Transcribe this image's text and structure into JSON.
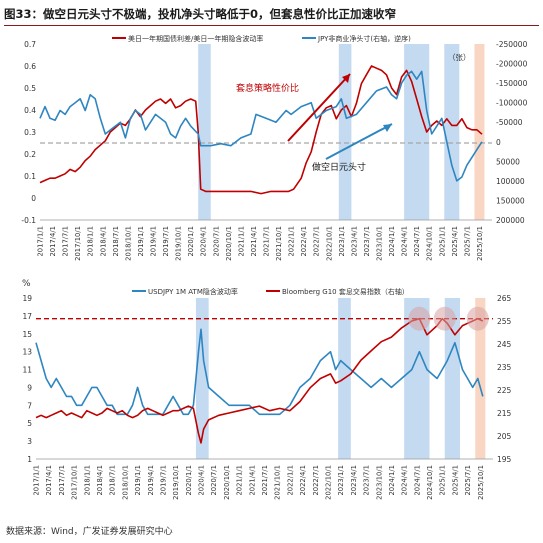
{
  "figure": {
    "title": "图33：做空日元头寸不极端，投机净头寸略低于0，但套息性价比正加速收窄",
    "source": "数据来源：Wind，广发证券发展研究中心"
  },
  "colors": {
    "red_series": "#c00000",
    "blue_series": "#2e86c1",
    "band_blue": "#b8d4ee",
    "band_orange": "#f8cfb8",
    "dashed": "#a6a6a6",
    "redDashed": "#c00000",
    "highlight": "#d9a3a3"
  },
  "chart_data": [
    {
      "type": "line",
      "legend": [
        "美日一年期国债利差/美日一年期隐含波动率",
        "JPY非商业净头寸(右轴，逆序)"
      ],
      "legend_position": "top",
      "annotations": {
        "zhang": "（张）",
        "carry": "套息策略性价比",
        "short": "做空日元头寸"
      },
      "y_left": {
        "min": -0.1,
        "max": 0.7,
        "ticks": [
          "0.7",
          "0.6",
          "0.5",
          "0.4",
          "0.3",
          "0.2",
          "0.1",
          "0",
          "-0.1"
        ]
      },
      "y_right": {
        "min": -250000,
        "max": 200000,
        "reversed": true,
        "ticks": [
          "-250000",
          "-200000",
          "-150000",
          "-100000",
          "-50000",
          "0",
          "50000",
          "100000",
          "150000",
          "200000"
        ]
      },
      "x_ticks": [
        "2017/1/1",
        "2017/4/1",
        "2017/7/1",
        "2017/10/1",
        "2018/1/1",
        "2018/4/1",
        "2018/7/1",
        "2018/10/1",
        "2019/1/1",
        "2019/4/1",
        "2019/7/1",
        "2019/10/1",
        "2020/1/1",
        "2020/4/1",
        "2020/7/1",
        "2020/10/1",
        "2021/1/1",
        "2021/4/1",
        "2021/7/1",
        "2021/10/1",
        "2022/1/1",
        "2022/4/1",
        "2022/7/1",
        "2022/10/1",
        "2023/1/1",
        "2023/4/1",
        "2023/7/1",
        "2023/10/1",
        "2024/1/1",
        "2024/4/1",
        "2024/7/1",
        "2024/10/1",
        "2025/1/1",
        "2025/4/1",
        "2025/7/1",
        "2025/10/1"
      ],
      "reference_line": 0.25,
      "shaded_periods": [
        {
          "from": 2020.15,
          "to": 2020.4,
          "color": "blue"
        },
        {
          "from": 2022.95,
          "to": 2023.2,
          "color": "blue"
        },
        {
          "from": 2024.25,
          "to": 2024.75,
          "color": "blue"
        },
        {
          "from": 2025.05,
          "to": 2025.35,
          "color": "blue"
        },
        {
          "from": 2025.65,
          "to": 2025.85,
          "color": "orange"
        }
      ],
      "series": [
        {
          "name": "美日一年期国债利差/美日一年期隐含波动率",
          "axis": "left",
          "x": [
            2017.0,
            2017.1,
            2017.2,
            2017.3,
            2017.4,
            2017.5,
            2017.6,
            2017.7,
            2017.8,
            2017.9,
            2018.0,
            2018.1,
            2018.2,
            2018.3,
            2018.4,
            2018.5,
            2018.6,
            2018.7,
            2018.8,
            2018.9,
            2019.0,
            2019.1,
            2019.2,
            2019.3,
            2019.4,
            2019.5,
            2019.6,
            2019.7,
            2019.8,
            2019.9,
            2020.0,
            2020.1,
            2020.15,
            2020.2,
            2020.3,
            2020.4,
            2020.6,
            2020.8,
            2021.0,
            2021.2,
            2021.4,
            2021.6,
            2021.8,
            2021.95,
            2022.05,
            2022.2,
            2022.3,
            2022.4,
            2022.5,
            2022.6,
            2022.7,
            2022.8,
            2022.9,
            2023.0,
            2023.1,
            2023.2,
            2023.3,
            2023.4,
            2023.5,
            2023.6,
            2023.7,
            2023.8,
            2023.9,
            2024.0,
            2024.1,
            2024.2,
            2024.3,
            2024.4,
            2024.5,
            2024.6,
            2024.7,
            2024.8,
            2024.9,
            2025.0,
            2025.1,
            2025.2,
            2025.3,
            2025.4,
            2025.5,
            2025.6,
            2025.7,
            2025.8
          ],
          "y": [
            0.07,
            0.08,
            0.09,
            0.09,
            0.1,
            0.11,
            0.13,
            0.12,
            0.14,
            0.17,
            0.19,
            0.22,
            0.24,
            0.26,
            0.3,
            0.32,
            0.34,
            0.33,
            0.36,
            0.4,
            0.37,
            0.4,
            0.42,
            0.44,
            0.45,
            0.43,
            0.45,
            0.41,
            0.42,
            0.44,
            0.45,
            0.44,
            0.3,
            0.04,
            0.03,
            0.03,
            0.03,
            0.03,
            0.03,
            0.03,
            0.02,
            0.03,
            0.03,
            0.03,
            0.04,
            0.09,
            0.16,
            0.21,
            0.3,
            0.38,
            0.41,
            0.42,
            0.36,
            0.4,
            0.42,
            0.37,
            0.43,
            0.52,
            0.56,
            0.6,
            0.59,
            0.58,
            0.56,
            0.5,
            0.47,
            0.55,
            0.58,
            0.53,
            0.45,
            0.37,
            0.3,
            0.33,
            0.35,
            0.33,
            0.36,
            0.33,
            0.33,
            0.36,
            0.32,
            0.31,
            0.31,
            0.29
          ]
        },
        {
          "name": "JPY非商业净头寸(右轴，逆序)",
          "axis": "right",
          "x": [
            2017.0,
            2017.1,
            2017.2,
            2017.3,
            2017.4,
            2017.5,
            2017.6,
            2017.7,
            2017.8,
            2017.9,
            2018.0,
            2018.1,
            2018.2,
            2018.3,
            2018.4,
            2018.5,
            2018.6,
            2018.7,
            2018.8,
            2018.9,
            2019.0,
            2019.1,
            2019.2,
            2019.3,
            2019.4,
            2019.5,
            2019.6,
            2019.7,
            2019.8,
            2019.9,
            2020.0,
            2020.15,
            2020.2,
            2020.3,
            2020.4,
            2020.6,
            2020.8,
            2021.0,
            2021.2,
            2021.3,
            2021.5,
            2021.7,
            2021.9,
            2022.0,
            2022.2,
            2022.4,
            2022.5,
            2022.7,
            2022.9,
            2023.0,
            2023.1,
            2023.3,
            2023.5,
            2023.7,
            2023.9,
            2024.0,
            2024.1,
            2024.2,
            2024.3,
            2024.4,
            2024.5,
            2024.6,
            2024.7,
            2024.8,
            2024.9,
            2025.0,
            2025.1,
            2025.2,
            2025.3,
            2025.4,
            2025.5,
            2025.6,
            2025.7,
            2025.8
          ],
          "y": [
            -60000,
            -90000,
            -60000,
            -55000,
            -80000,
            -70000,
            -90000,
            -100000,
            -110000,
            -80000,
            -120000,
            -110000,
            -60000,
            -20000,
            -30000,
            -40000,
            -50000,
            -10000,
            -60000,
            -80000,
            -70000,
            -30000,
            -50000,
            -70000,
            -60000,
            -50000,
            -20000,
            -10000,
            -40000,
            -60000,
            -40000,
            -20000,
            10000,
            10000,
            10000,
            5000,
            10000,
            -10000,
            -20000,
            -70000,
            -60000,
            -50000,
            -80000,
            -70000,
            -90000,
            -100000,
            -60000,
            -80000,
            -90000,
            -110000,
            -60000,
            -70000,
            -100000,
            -130000,
            -140000,
            -120000,
            -110000,
            -150000,
            -170000,
            -180000,
            -160000,
            -180000,
            -80000,
            -20000,
            -40000,
            -60000,
            0,
            60000,
            100000,
            90000,
            60000,
            40000,
            20000,
            0
          ]
        }
      ]
    },
    {
      "type": "line",
      "ylabel": "%",
      "legend": [
        "USDJPY 1M ATM隐含波动率",
        "Bloomberg G10 套息交易指数（右轴）"
      ],
      "legend_position": "top",
      "y_left": {
        "min": 1,
        "max": 19,
        "ticks": [
          "19",
          "17",
          "15",
          "13",
          "11",
          "9",
          "7",
          "5",
          "3",
          "1"
        ]
      },
      "y_right": {
        "min": 195,
        "max": 265,
        "ticks": [
          "265",
          "255",
          "245",
          "235",
          "225",
          "215",
          "205",
          "195"
        ]
      },
      "x_ticks": [
        "2017/1/1",
        "2017/4/1",
        "2017/7/1",
        "2017/10/1",
        "2018/1/1",
        "2018/4/1",
        "2018/7/1",
        "2018/10/1",
        "2019/1/1",
        "2019/4/1",
        "2019/7/1",
        "2019/10/1",
        "2020/1/1",
        "2020/4/1",
        "2020/7/1",
        "2020/10/1",
        "2021/1/1",
        "2021/4/1",
        "2021/7/1",
        "2021/10/1",
        "2022/1/1",
        "2022/4/1",
        "2022/7/1",
        "2022/10/1",
        "2023/1/1",
        "2023/4/1",
        "2023/7/1",
        "2023/10/1",
        "2024/1/1",
        "2024/4/1",
        "2024/7/1",
        "2024/10/1",
        "2025/1/1",
        "2025/4/1",
        "2025/7/1",
        "2025/10/1"
      ],
      "reference_line_right": 256,
      "highlight_circles": [
        2024.55,
        2025.05,
        2025.7
      ],
      "shaded_periods": [
        {
          "from": 2020.15,
          "to": 2020.4,
          "color": "blue"
        },
        {
          "from": 2022.95,
          "to": 2023.2,
          "color": "blue"
        },
        {
          "from": 2024.25,
          "to": 2024.75,
          "color": "blue"
        },
        {
          "from": 2025.05,
          "to": 2025.35,
          "color": "blue"
        },
        {
          "from": 2025.65,
          "to": 2025.85,
          "color": "orange"
        }
      ],
      "series": [
        {
          "name": "USDJPY 1M ATM隐含波动率",
          "axis": "left",
          "x": [
            2017.0,
            2017.1,
            2017.2,
            2017.3,
            2017.4,
            2017.5,
            2017.6,
            2017.7,
            2017.8,
            2017.9,
            2018.0,
            2018.1,
            2018.2,
            2018.3,
            2018.4,
            2018.5,
            2018.6,
            2018.7,
            2018.8,
            2018.9,
            2019.0,
            2019.1,
            2019.2,
            2019.3,
            2019.4,
            2019.5,
            2019.6,
            2019.7,
            2019.8,
            2019.9,
            2020.0,
            2020.1,
            2020.2,
            2020.25,
            2020.3,
            2020.4,
            2020.6,
            2020.8,
            2021.0,
            2021.2,
            2021.4,
            2021.6,
            2021.8,
            2022.0,
            2022.2,
            2022.4,
            2022.6,
            2022.8,
            2022.9,
            2023.0,
            2023.2,
            2023.4,
            2023.6,
            2023.8,
            2024.0,
            2024.2,
            2024.4,
            2024.55,
            2024.7,
            2024.9,
            2025.0,
            2025.1,
            2025.25,
            2025.4,
            2025.5,
            2025.6,
            2025.7,
            2025.8
          ],
          "y": [
            14,
            12,
            10,
            9,
            10,
            9,
            8,
            8,
            7,
            7,
            8,
            9,
            9,
            8,
            7,
            7,
            6,
            6,
            6,
            7,
            9,
            7,
            6,
            6,
            6,
            6,
            7,
            8,
            7,
            6,
            6,
            7,
            13,
            15.5,
            12,
            9,
            8,
            7,
            7,
            7,
            6,
            6,
            6,
            7,
            9,
            10,
            12,
            13,
            11,
            12,
            11,
            10,
            9,
            10,
            9,
            10,
            11,
            13,
            11,
            10,
            11,
            12,
            14,
            11,
            10,
            9,
            10,
            8
          ]
        },
        {
          "name": "Bloomberg G10 套息交易指数（右轴）",
          "axis": "right",
          "x": [
            2017.0,
            2017.1,
            2017.2,
            2017.3,
            2017.4,
            2017.5,
            2017.6,
            2017.7,
            2017.8,
            2017.9,
            2018.0,
            2018.1,
            2018.2,
            2018.3,
            2018.4,
            2018.5,
            2018.6,
            2018.7,
            2018.8,
            2018.9,
            2019.0,
            2019.1,
            2019.2,
            2019.3,
            2019.4,
            2019.5,
            2019.6,
            2019.7,
            2019.8,
            2019.9,
            2020.0,
            2020.1,
            2020.2,
            2020.25,
            2020.3,
            2020.4,
            2020.6,
            2020.8,
            2021.0,
            2021.2,
            2021.4,
            2021.6,
            2021.8,
            2022.0,
            2022.2,
            2022.4,
            2022.6,
            2022.8,
            2022.9,
            2023.0,
            2023.2,
            2023.4,
            2023.6,
            2023.8,
            2024.0,
            2024.2,
            2024.4,
            2024.55,
            2024.7,
            2024.9,
            2025.0,
            2025.1,
            2025.25,
            2025.4,
            2025.5,
            2025.6,
            2025.7,
            2025.8
          ],
          "y": [
            213,
            214,
            213,
            214,
            215,
            216,
            214,
            215,
            214,
            213,
            216,
            215,
            214,
            215,
            217,
            216,
            215,
            216,
            214,
            213,
            214,
            216,
            217,
            216,
            215,
            214,
            215,
            216,
            216,
            217,
            218,
            217,
            206,
            202,
            208,
            212,
            214,
            215,
            216,
            217,
            218,
            216,
            217,
            216,
            220,
            226,
            230,
            232,
            228,
            229,
            232,
            238,
            242,
            246,
            248,
            252,
            255,
            256,
            249,
            253,
            256,
            254,
            249,
            253,
            254,
            255,
            256,
            255
          ]
        }
      ]
    }
  ]
}
